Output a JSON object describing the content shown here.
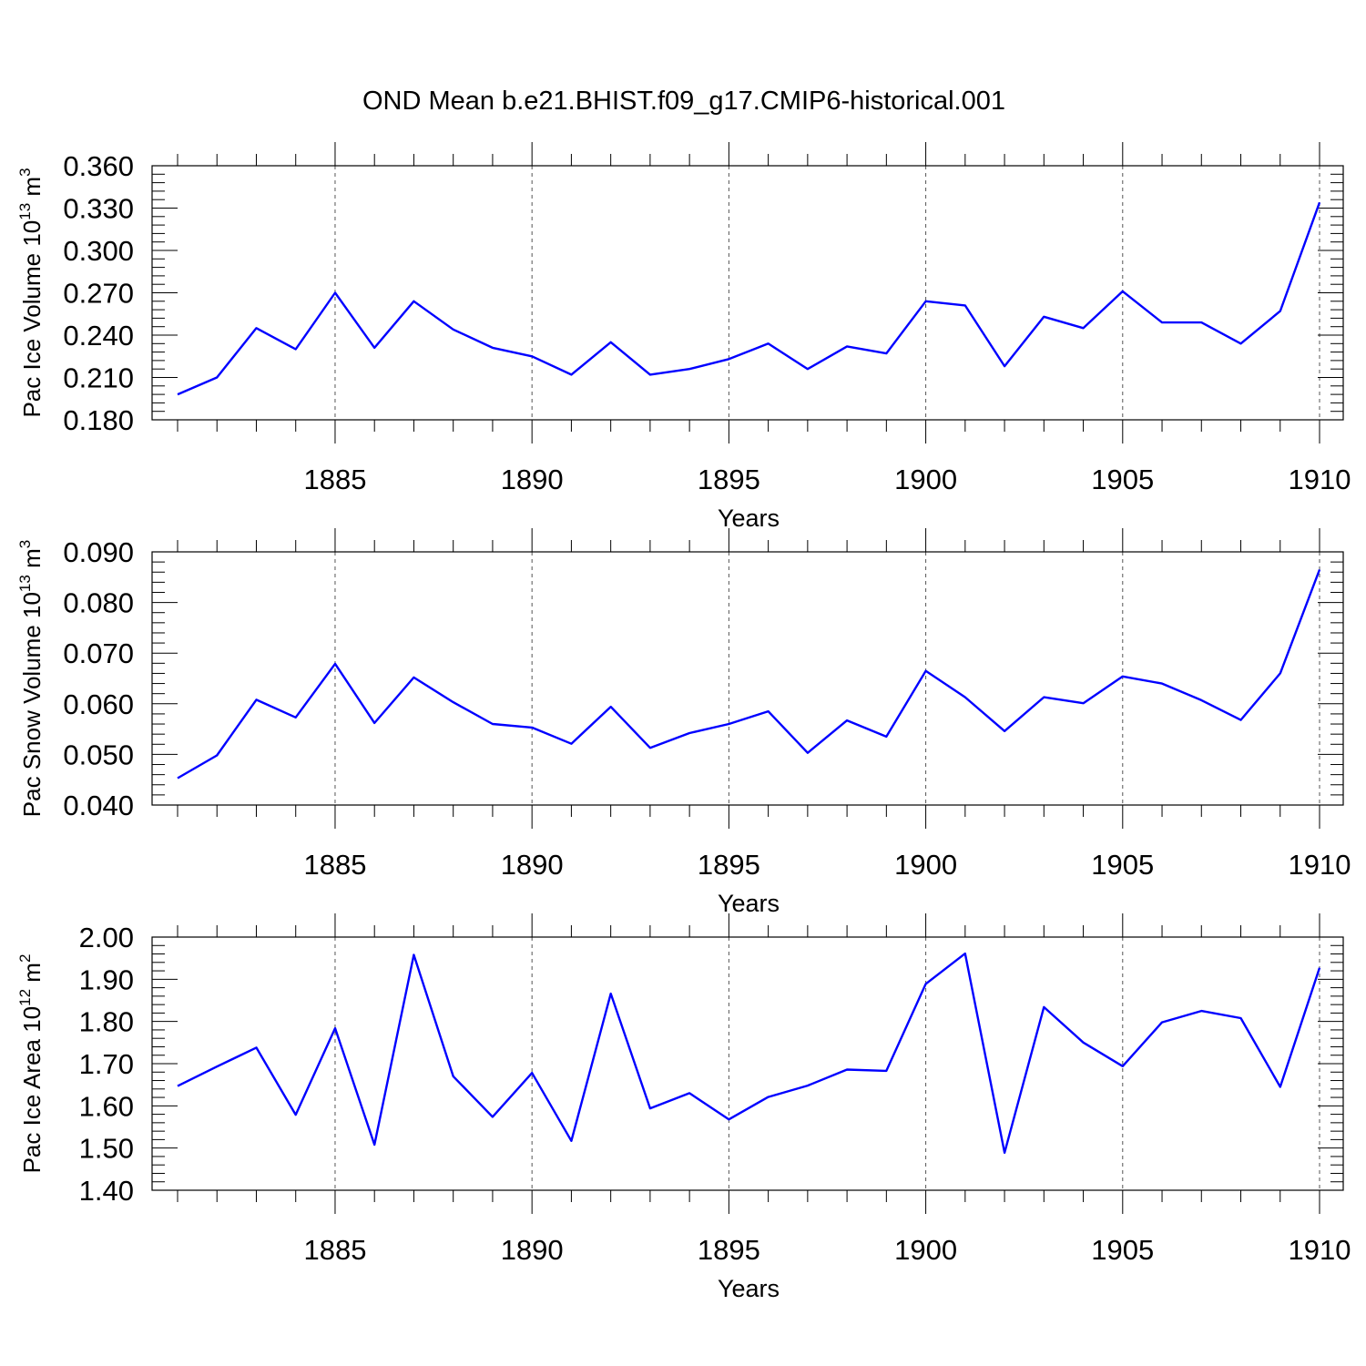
{
  "title": "OND Mean b.e21.BHIST.f09_g17.CMIP6-historical.001",
  "line_color": "#0000ff",
  "chart_data": [
    {
      "type": "line",
      "title": "OND Mean b.e21.BHIST.f09_g17.CMIP6-historical.001",
      "ylabel": "Pac Ice Volume",
      "ylabel_unit_base": "10",
      "ylabel_unit_exp": "13",
      "ylabel_unit_suffix": " m",
      "ylabel_unit_suffix_exp": "3",
      "xlabel": "Years",
      "xlim": [
        1881,
        1910
      ],
      "ylim": [
        0.18,
        0.36
      ],
      "yticks": [
        "0.180",
        "0.210",
        "0.240",
        "0.270",
        "0.300",
        "0.330",
        "0.360"
      ],
      "xticks": [
        "1885",
        "1890",
        "1895",
        "1900",
        "1905",
        "1910"
      ],
      "grid": "dashed vertical at major x ticks",
      "series": [
        {
          "x": [
            1881,
            1882,
            1883,
            1884,
            1885,
            1886,
            1887,
            1888,
            1889,
            1890,
            1891,
            1892,
            1893,
            1894,
            1895,
            1896,
            1897,
            1898,
            1899,
            1900,
            1901,
            1902,
            1903,
            1904,
            1905,
            1906,
            1907,
            1908,
            1909,
            1910
          ],
          "values": [
            0.198,
            0.21,
            0.245,
            0.23,
            0.27,
            0.231,
            0.264,
            0.244,
            0.231,
            0.225,
            0.212,
            0.235,
            0.212,
            0.216,
            0.223,
            0.234,
            0.216,
            0.232,
            0.227,
            0.264,
            0.261,
            0.218,
            0.253,
            0.245,
            0.271,
            0.249,
            0.249,
            0.234,
            0.257,
            0.334
          ]
        }
      ]
    },
    {
      "type": "line",
      "ylabel": "Pac Snow Volume",
      "ylabel_unit_base": "10",
      "ylabel_unit_exp": "13",
      "ylabel_unit_suffix": " m",
      "ylabel_unit_suffix_exp": "3",
      "xlabel": "Years",
      "xlim": [
        1881,
        1910
      ],
      "ylim": [
        0.04,
        0.09
      ],
      "yticks": [
        "0.040",
        "0.050",
        "0.060",
        "0.070",
        "0.080",
        "0.090"
      ],
      "xticks": [
        "1885",
        "1890",
        "1895",
        "1900",
        "1905",
        "1910"
      ],
      "grid": "dashed vertical at major x ticks",
      "series": [
        {
          "x": [
            1881,
            1882,
            1883,
            1884,
            1885,
            1886,
            1887,
            1888,
            1889,
            1890,
            1891,
            1892,
            1893,
            1894,
            1895,
            1896,
            1897,
            1898,
            1899,
            1900,
            1901,
            1902,
            1903,
            1904,
            1905,
            1906,
            1907,
            1908,
            1909,
            1910
          ],
          "values": [
            0.0453,
            0.0498,
            0.0608,
            0.0573,
            0.0679,
            0.0562,
            0.0652,
            0.0603,
            0.056,
            0.0553,
            0.0521,
            0.0594,
            0.0513,
            0.0542,
            0.056,
            0.0585,
            0.0503,
            0.0567,
            0.0535,
            0.0665,
            0.0613,
            0.0546,
            0.0613,
            0.0601,
            0.0654,
            0.064,
            0.0607,
            0.0568,
            0.066,
            0.0865
          ]
        }
      ]
    },
    {
      "type": "line",
      "ylabel": "Pac Ice Area",
      "ylabel_unit_base": "10",
      "ylabel_unit_exp": "12",
      "ylabel_unit_suffix": " m",
      "ylabel_unit_suffix_exp": "2",
      "xlabel": "Years",
      "xlim": [
        1881,
        1910
      ],
      "ylim": [
        1.4,
        2.0
      ],
      "yticks": [
        "1.40",
        "1.50",
        "1.60",
        "1.70",
        "1.80",
        "1.90",
        "2.00"
      ],
      "xticks": [
        "1885",
        "1890",
        "1895",
        "1900",
        "1905",
        "1910"
      ],
      "grid": "dashed vertical at major x ticks",
      "series": [
        {
          "x": [
            1881,
            1882,
            1883,
            1884,
            1885,
            1886,
            1887,
            1888,
            1889,
            1890,
            1891,
            1892,
            1893,
            1894,
            1895,
            1896,
            1897,
            1898,
            1899,
            1900,
            1901,
            1902,
            1903,
            1904,
            1905,
            1906,
            1907,
            1908,
            1909,
            1910
          ],
          "values": [
            1.647,
            1.693,
            1.738,
            1.579,
            1.784,
            1.508,
            1.958,
            1.67,
            1.574,
            1.678,
            1.517,
            1.866,
            1.594,
            1.63,
            1.568,
            1.621,
            1.648,
            1.686,
            1.683,
            1.889,
            1.961,
            1.489,
            1.834,
            1.75,
            1.694,
            1.798,
            1.825,
            1.808,
            1.645,
            1.927
          ]
        }
      ]
    }
  ]
}
